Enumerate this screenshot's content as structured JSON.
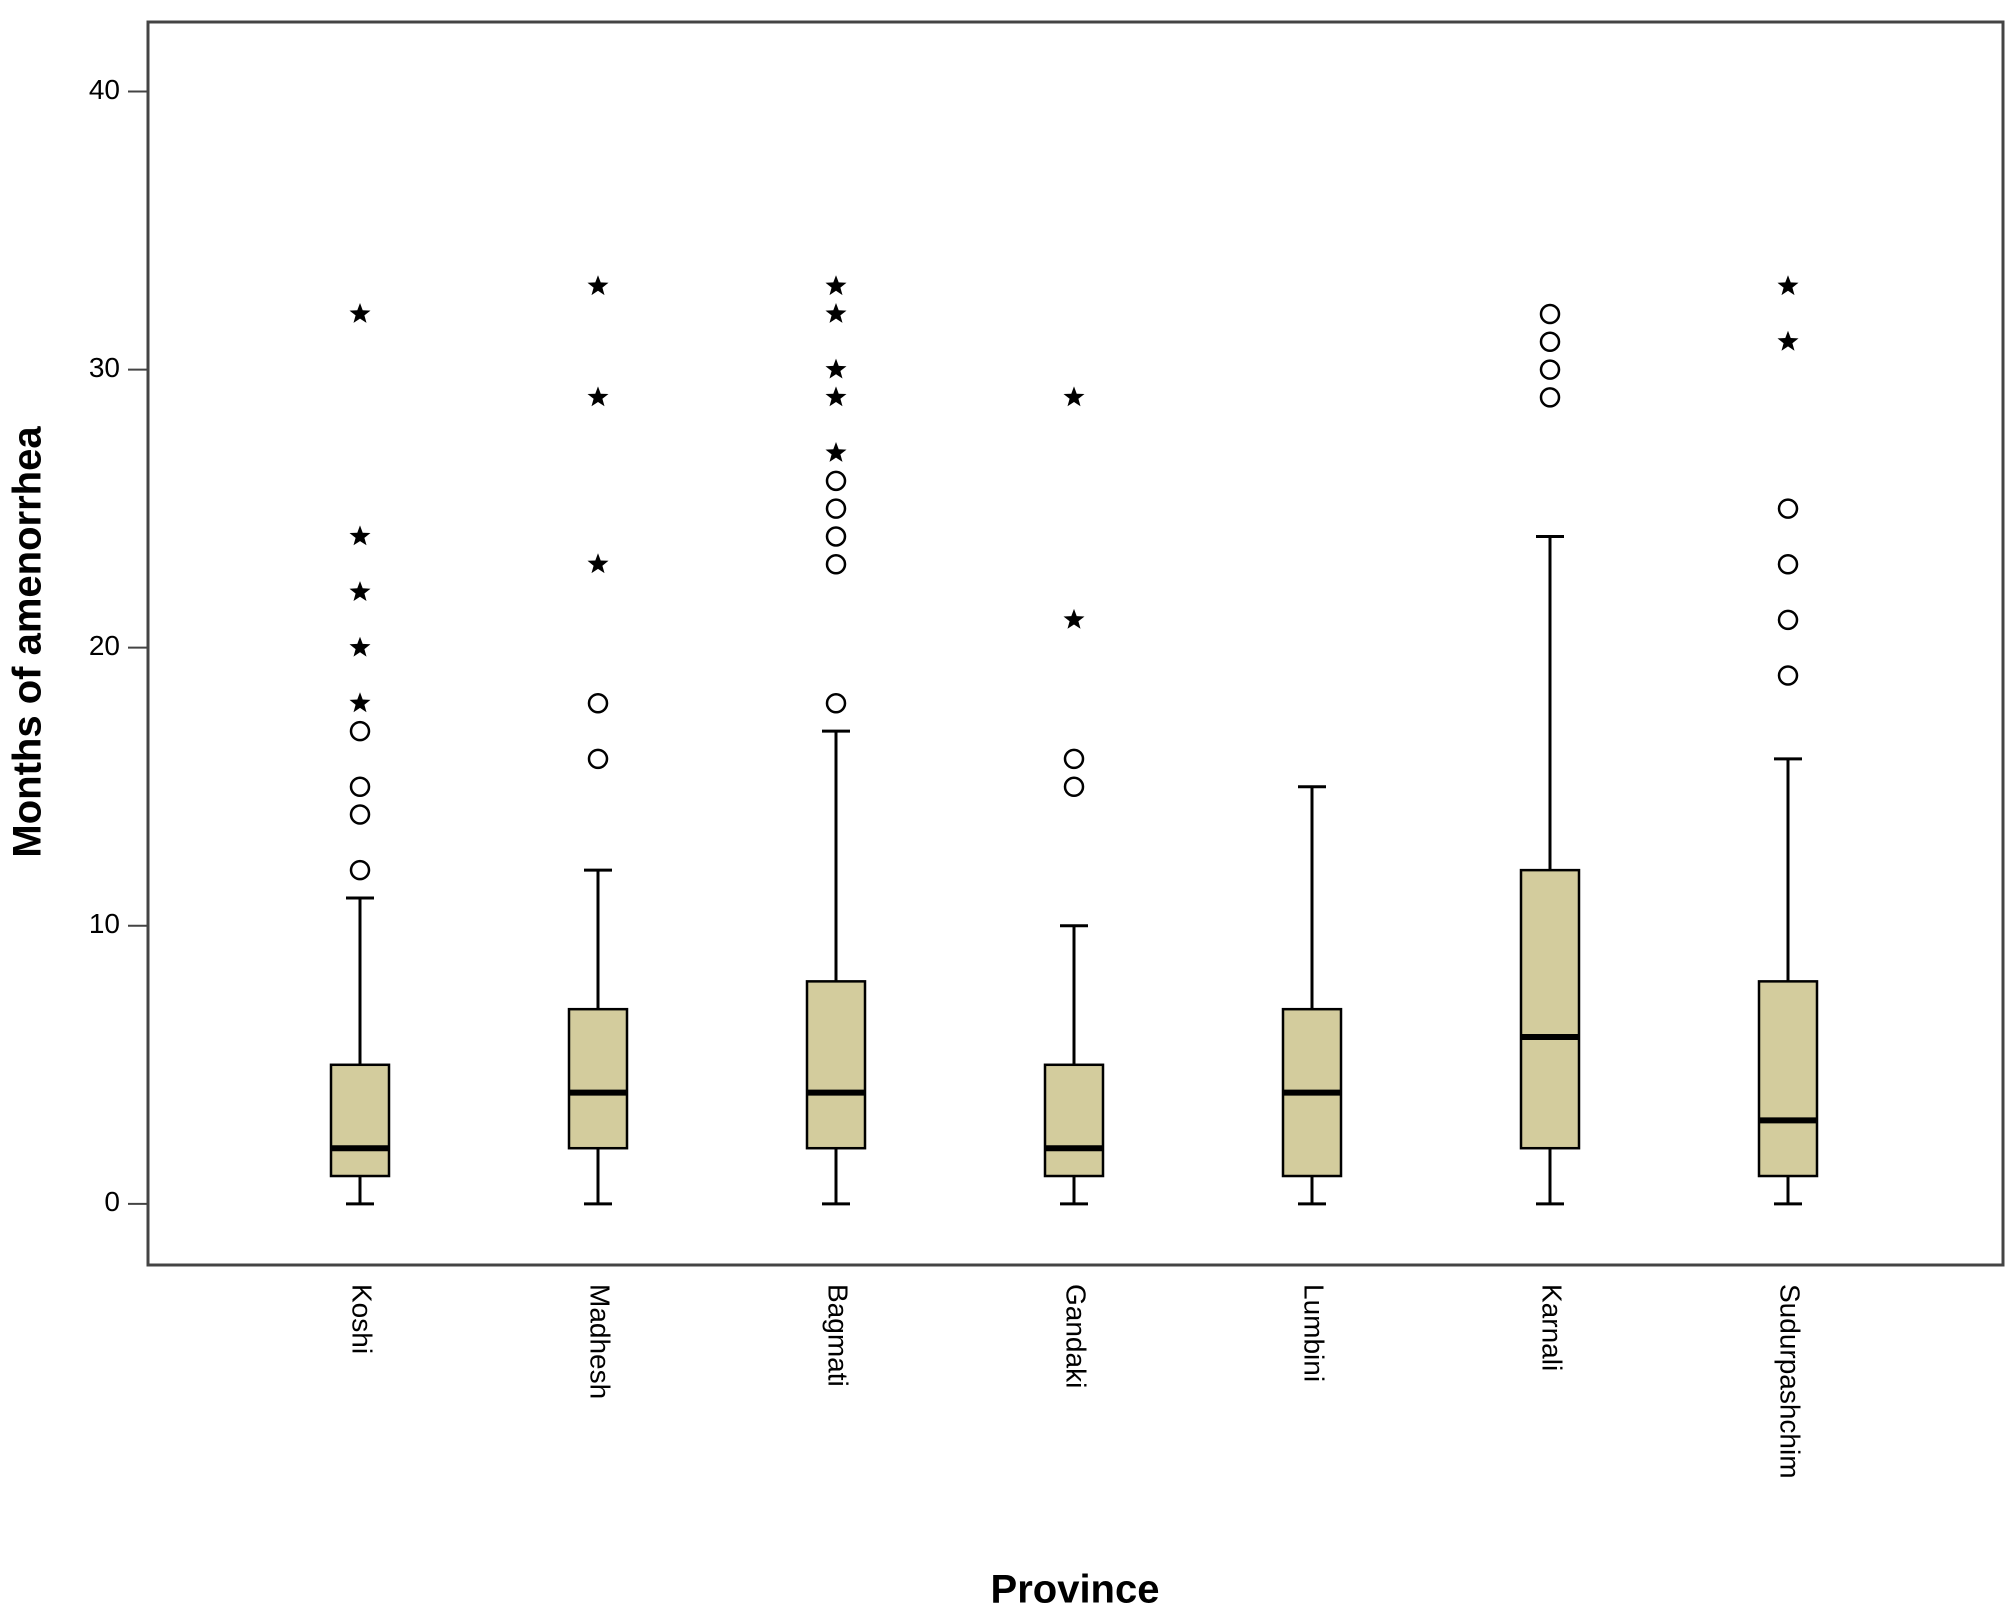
{
  "chart_data": {
    "type": "box",
    "x_label": "Province",
    "y_label": "Months of amenorrhea",
    "categories": [
      "Koshi",
      "Madhesh",
      "Bagmati",
      "Gandaki",
      "Lumbini",
      "Karnali",
      "Sudurpashchim"
    ],
    "whisker_low": [
      0,
      0,
      0,
      0,
      0,
      0,
      0
    ],
    "q1": [
      1,
      2,
      2,
      1,
      1,
      2,
      1
    ],
    "median": [
      2,
      4,
      4,
      2,
      4,
      6,
      3
    ],
    "q3": [
      5,
      7,
      8,
      5,
      7,
      12,
      8
    ],
    "whisker_high": [
      11,
      12,
      17,
      10,
      15,
      24,
      16
    ],
    "outliers": [
      [
        12,
        14,
        15,
        17
      ],
      [
        16,
        18
      ],
      [
        18,
        23,
        24,
        25,
        26
      ],
      [
        15,
        16
      ],
      [],
      [
        29,
        30,
        31,
        32
      ],
      [
        19,
        21,
        23,
        25
      ]
    ],
    "extremes": [
      [
        18,
        20,
        22,
        24,
        32
      ],
      [
        23,
        29,
        33
      ],
      [
        27,
        29,
        30,
        32,
        33
      ],
      [
        21,
        29
      ],
      [],
      [],
      [
        31,
        33
      ]
    ],
    "color": "#d3cc9d",
    "ylim": [
      -2.2,
      42.5
    ],
    "yticks": [
      0,
      10,
      20,
      30,
      40
    ]
  }
}
